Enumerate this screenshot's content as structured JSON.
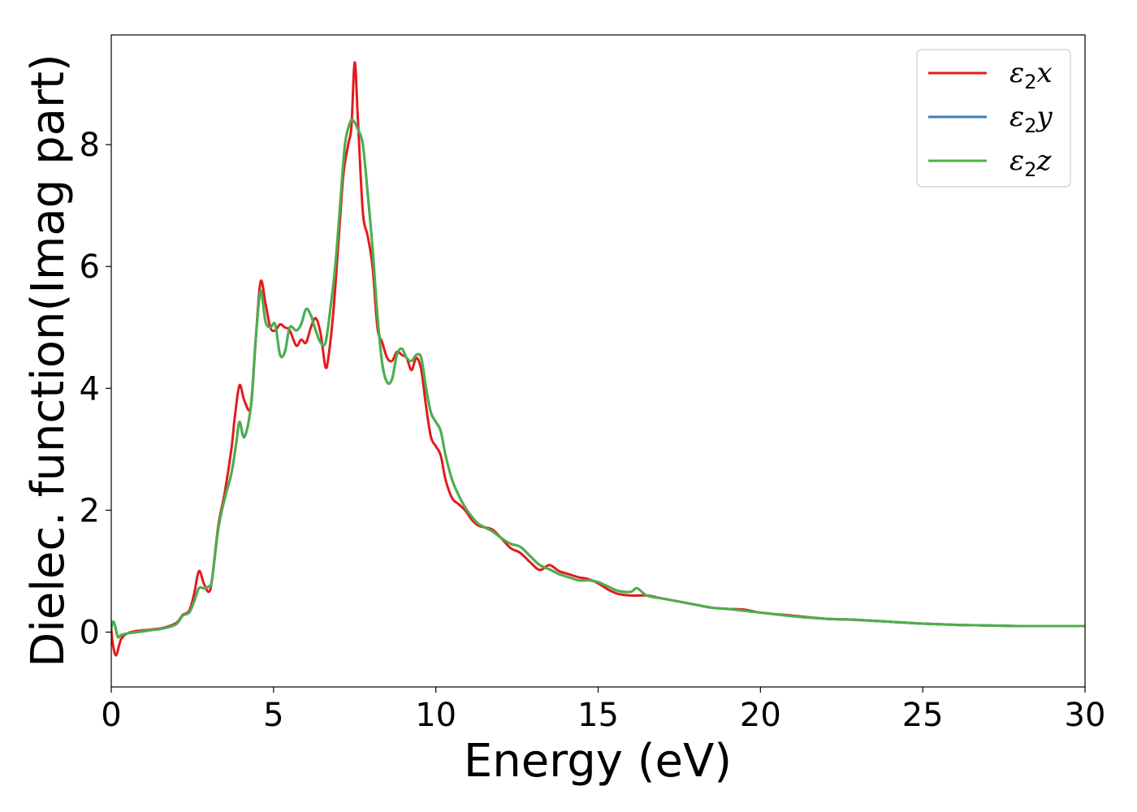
{
  "chart_data": {
    "type": "line",
    "xlabel": "Energy (eV)",
    "ylabel": "Dielec. function(Imag part)",
    "xlim": [
      0,
      30
    ],
    "ylim": [
      -0.9,
      9.8
    ],
    "xticks": [
      0,
      5,
      10,
      15,
      20,
      25,
      30
    ],
    "yticks": [
      0,
      2,
      4,
      6,
      8
    ],
    "grid": false,
    "legend_position": "top-right",
    "series": [
      {
        "name": "ε₂x",
        "legend_base": "ε",
        "legend_sub": "2",
        "legend_suffix": "x",
        "color": "#e41a1c",
        "x": [
          0,
          0.05,
          0.15,
          0.3,
          0.5,
          0.8,
          1.2,
          1.6,
          2.0,
          2.2,
          2.4,
          2.55,
          2.7,
          2.85,
          3.0,
          3.1,
          3.3,
          3.5,
          3.7,
          3.8,
          3.95,
          4.1,
          4.3,
          4.45,
          4.6,
          4.75,
          4.9,
          5.05,
          5.2,
          5.35,
          5.5,
          5.7,
          5.85,
          6.0,
          6.15,
          6.3,
          6.45,
          6.6,
          6.7,
          6.85,
          7.0,
          7.15,
          7.3,
          7.4,
          7.5,
          7.6,
          7.75,
          7.9,
          8.05,
          8.2,
          8.35,
          8.5,
          8.65,
          8.8,
          8.95,
          9.1,
          9.25,
          9.4,
          9.55,
          9.7,
          9.85,
          10.0,
          10.15,
          10.3,
          10.5,
          10.7,
          10.9,
          11.1,
          11.3,
          11.5,
          11.75,
          12.0,
          12.3,
          12.6,
          12.9,
          13.2,
          13.5,
          13.8,
          14.1,
          14.4,
          14.7,
          15.0,
          15.3,
          15.6,
          16.0,
          16.5,
          17.0,
          17.5,
          18.0,
          18.5,
          19.0,
          19.5,
          20.0,
          21.0,
          22.0,
          23.0,
          24.0,
          25.0,
          26.0,
          27.0,
          28.0,
          29.0,
          30.0
        ],
        "y": [
          0.05,
          -0.2,
          -0.38,
          -0.12,
          -0.02,
          0.02,
          0.04,
          0.07,
          0.15,
          0.28,
          0.35,
          0.62,
          1.0,
          0.8,
          0.66,
          0.85,
          1.75,
          2.3,
          3.0,
          3.5,
          4.05,
          3.8,
          3.7,
          4.8,
          5.75,
          5.4,
          5.0,
          4.95,
          5.05,
          5.0,
          4.95,
          4.7,
          4.8,
          4.75,
          5.0,
          5.15,
          4.9,
          4.35,
          4.55,
          5.3,
          6.4,
          7.5,
          8.0,
          8.3,
          9.35,
          8.4,
          6.9,
          6.5,
          6.0,
          5.0,
          4.75,
          4.5,
          4.45,
          4.6,
          4.55,
          4.5,
          4.3,
          4.5,
          4.3,
          3.7,
          3.2,
          3.05,
          2.9,
          2.5,
          2.2,
          2.1,
          2.0,
          1.85,
          1.75,
          1.72,
          1.68,
          1.55,
          1.38,
          1.3,
          1.15,
          1.02,
          1.1,
          1.0,
          0.95,
          0.9,
          0.87,
          0.8,
          0.7,
          0.63,
          0.6,
          0.6,
          0.55,
          0.5,
          0.45,
          0.4,
          0.38,
          0.37,
          0.32,
          0.27,
          0.22,
          0.2,
          0.17,
          0.14,
          0.12,
          0.11,
          0.1,
          0.1,
          0.1
        ]
      },
      {
        "name": "ε₂y",
        "legend_base": "ε",
        "legend_sub": "2",
        "legend_suffix": "y",
        "color": "#377eb8",
        "x": [
          0,
          0.05,
          0.12,
          0.2,
          0.3,
          0.5,
          0.8,
          1.2,
          1.6,
          2.0,
          2.2,
          2.4,
          2.55,
          2.7,
          2.85,
          3.0,
          3.1,
          3.3,
          3.5,
          3.7,
          3.85,
          3.95,
          4.1,
          4.3,
          4.45,
          4.6,
          4.75,
          4.9,
          5.05,
          5.2,
          5.35,
          5.5,
          5.7,
          5.85,
          6.0,
          6.15,
          6.3,
          6.45,
          6.6,
          6.75,
          6.9,
          7.05,
          7.2,
          7.35,
          7.45,
          7.6,
          7.75,
          7.9,
          8.05,
          8.2,
          8.35,
          8.5,
          8.65,
          8.8,
          8.95,
          9.1,
          9.25,
          9.4,
          9.55,
          9.7,
          9.85,
          10.0,
          10.15,
          10.3,
          10.5,
          10.7,
          10.9,
          11.1,
          11.3,
          11.5,
          11.75,
          12.0,
          12.3,
          12.6,
          12.9,
          13.2,
          13.5,
          13.8,
          14.1,
          14.4,
          14.7,
          15.0,
          15.3,
          15.6,
          16.0,
          16.2,
          16.5,
          17.0,
          17.5,
          18.0,
          18.5,
          19.0,
          19.5,
          20.0,
          21.0,
          22.0,
          23.0,
          24.0,
          25.0,
          26.0,
          27.0,
          28.0,
          29.0,
          30.0
        ],
        "y": [
          0.05,
          0.17,
          0.1,
          -0.08,
          -0.05,
          -0.02,
          0.0,
          0.03,
          0.06,
          0.13,
          0.27,
          0.32,
          0.5,
          0.72,
          0.72,
          0.75,
          0.85,
          1.7,
          2.2,
          2.6,
          3.1,
          3.45,
          3.2,
          3.7,
          4.8,
          5.6,
          5.1,
          5.0,
          5.05,
          4.55,
          4.6,
          5.0,
          4.95,
          5.05,
          5.3,
          5.2,
          4.95,
          4.75,
          4.75,
          5.3,
          6.0,
          7.0,
          8.0,
          8.35,
          8.4,
          8.25,
          8.0,
          7.2,
          6.3,
          5.2,
          4.4,
          4.1,
          4.15,
          4.55,
          4.65,
          4.5,
          4.45,
          4.55,
          4.5,
          4.0,
          3.6,
          3.45,
          3.3,
          2.9,
          2.5,
          2.25,
          2.05,
          1.9,
          1.78,
          1.72,
          1.65,
          1.55,
          1.45,
          1.4,
          1.25,
          1.1,
          1.03,
          0.95,
          0.9,
          0.85,
          0.85,
          0.82,
          0.75,
          0.68,
          0.66,
          0.72,
          0.6,
          0.55,
          0.5,
          0.45,
          0.4,
          0.38,
          0.35,
          0.32,
          0.26,
          0.22,
          0.2,
          0.17,
          0.14,
          0.12,
          0.11,
          0.1,
          0.1,
          0.1
        ]
      },
      {
        "name": "ε₂z",
        "legend_base": "ε",
        "legend_sub": "2",
        "legend_suffix": "z",
        "color": "#4daf4a",
        "x": [
          0,
          0.05,
          0.12,
          0.2,
          0.3,
          0.5,
          0.8,
          1.2,
          1.6,
          2.0,
          2.2,
          2.4,
          2.55,
          2.7,
          2.85,
          3.0,
          3.1,
          3.3,
          3.5,
          3.7,
          3.85,
          3.95,
          4.1,
          4.3,
          4.45,
          4.6,
          4.75,
          4.9,
          5.05,
          5.2,
          5.35,
          5.5,
          5.7,
          5.85,
          6.0,
          6.15,
          6.3,
          6.45,
          6.6,
          6.75,
          6.9,
          7.05,
          7.2,
          7.35,
          7.45,
          7.6,
          7.75,
          7.9,
          8.05,
          8.2,
          8.35,
          8.5,
          8.65,
          8.8,
          8.95,
          9.1,
          9.25,
          9.4,
          9.55,
          9.7,
          9.85,
          10.0,
          10.15,
          10.3,
          10.5,
          10.7,
          10.9,
          11.1,
          11.3,
          11.5,
          11.75,
          12.0,
          12.3,
          12.6,
          12.9,
          13.2,
          13.5,
          13.8,
          14.1,
          14.4,
          14.7,
          15.0,
          15.3,
          15.6,
          16.0,
          16.2,
          16.5,
          17.0,
          17.5,
          18.0,
          18.5,
          19.0,
          19.5,
          20.0,
          21.0,
          22.0,
          23.0,
          24.0,
          25.0,
          26.0,
          27.0,
          28.0,
          29.0,
          30.0
        ],
        "y": [
          0.05,
          0.17,
          0.1,
          -0.08,
          -0.05,
          -0.02,
          0.0,
          0.03,
          0.06,
          0.13,
          0.27,
          0.32,
          0.5,
          0.72,
          0.72,
          0.75,
          0.85,
          1.7,
          2.2,
          2.6,
          3.1,
          3.45,
          3.2,
          3.7,
          4.8,
          5.6,
          5.1,
          5.0,
          5.05,
          4.55,
          4.6,
          5.0,
          4.95,
          5.05,
          5.3,
          5.2,
          4.95,
          4.75,
          4.75,
          5.3,
          6.0,
          7.0,
          8.0,
          8.35,
          8.4,
          8.25,
          8.0,
          7.2,
          6.3,
          5.2,
          4.4,
          4.1,
          4.15,
          4.55,
          4.65,
          4.5,
          4.45,
          4.55,
          4.5,
          4.0,
          3.6,
          3.45,
          3.3,
          2.9,
          2.5,
          2.25,
          2.05,
          1.9,
          1.78,
          1.72,
          1.65,
          1.55,
          1.45,
          1.4,
          1.25,
          1.1,
          1.03,
          0.95,
          0.9,
          0.85,
          0.85,
          0.82,
          0.75,
          0.68,
          0.66,
          0.72,
          0.6,
          0.55,
          0.5,
          0.45,
          0.4,
          0.38,
          0.35,
          0.32,
          0.26,
          0.22,
          0.2,
          0.17,
          0.14,
          0.12,
          0.11,
          0.1,
          0.1,
          0.1
        ]
      }
    ]
  }
}
